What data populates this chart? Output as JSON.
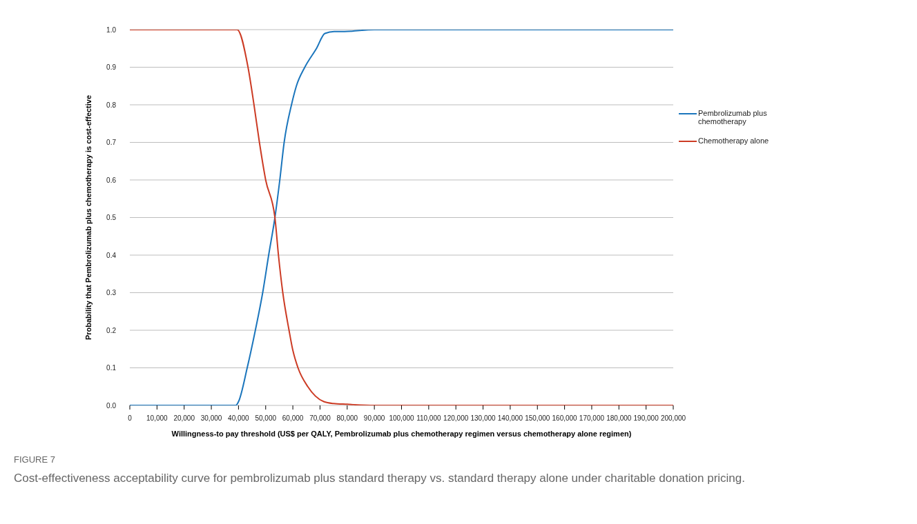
{
  "chart_data": {
    "type": "line",
    "xlabel": "Willingness-to pay threshold (US$ per QALY, Pembrolizumab plus chemotherapy regimen versus chemotherapy alone regimen)",
    "ylabel": "Probability that Pembrolizumab plus chemotherapy is cost-effective",
    "annotations": [
      "FIGURE 7",
      "Cost-effectiveness acceptability curve for pembrolizumab plus standard therapy vs. standard therapy alone under charitable donation pricing."
    ],
    "series": [
      {
        "name": "Pembrolizumab plus chemotherapy",
        "color": "#1a75bc",
        "x": [
          0,
          10000,
          20000,
          30000,
          39000,
          40000,
          43200,
          46200,
          48900,
          51100,
          53400,
          55200,
          56800,
          59500,
          61300,
          64400,
          68700,
          71800,
          75200,
          79000,
          90000,
          100000,
          150000,
          200000
        ],
        "values": [
          0,
          0,
          0,
          0,
          0,
          0.01,
          0.1,
          0.2,
          0.3,
          0.4,
          0.5,
          0.6,
          0.7,
          0.8,
          0.85,
          0.9,
          0.95,
          0.99,
          0.995,
          0.995,
          1,
          1,
          1,
          1
        ]
      },
      {
        "name": "Chemotherapy alone",
        "color": "#cc3b24",
        "x": [
          0,
          10000,
          20000,
          30000,
          39500,
          43500,
          45700,
          47700,
          50000,
          53400,
          54700,
          56300,
          58600,
          59900,
          61900,
          65500,
          71400,
          75000,
          80000,
          90000,
          100000,
          150000,
          200000
        ],
        "values": [
          1,
          1,
          1,
          1,
          1,
          0.9,
          0.8,
          0.7,
          0.6,
          0.5,
          0.4,
          0.3,
          0.2,
          0.15,
          0.1,
          0.05,
          0.01,
          0.005,
          0.003,
          0,
          0,
          0,
          0
        ]
      }
    ],
    "xlim": [
      0,
      200000
    ],
    "xticks": [
      0,
      {
        "value": 10000,
        "label": "10,000"
      },
      {
        "value": 20000,
        "label": "20,000"
      },
      {
        "value": 30000,
        "label": "30,000"
      },
      {
        "value": 40000,
        "label": "40,000"
      },
      {
        "value": 50000,
        "label": "50,000"
      },
      {
        "value": 60000,
        "label": "60,000"
      },
      {
        "value": 70000,
        "label": "70,000"
      },
      {
        "value": 80000,
        "label": "80,000"
      },
      {
        "value": 90000,
        "label": "90,000"
      },
      {
        "value": 100000,
        "label": "100,000"
      },
      {
        "value": 110000,
        "label": "110,000"
      },
      {
        "value": 120000,
        "label": "120,000"
      },
      {
        "value": 130000,
        "label": "130,000"
      },
      {
        "value": 140000,
        "label": "140,000"
      },
      {
        "value": 150000,
        "label": "150,000"
      },
      {
        "value": 160000,
        "label": "160,000"
      },
      {
        "value": 170000,
        "label": "170,000"
      },
      {
        "value": 180000,
        "label": "180,000"
      },
      {
        "value": 190000,
        "label": "190,000"
      },
      {
        "value": 200000,
        "label": "200,000"
      }
    ],
    "ylim": [
      0,
      1
    ],
    "yticks": [
      {
        "value": 0,
        "label": "0.0"
      },
      {
        "value": 0.1,
        "label": "0.1"
      },
      {
        "value": 0.2,
        "label": "0.2"
      },
      {
        "value": 0.3,
        "label": "0.3"
      },
      {
        "value": 0.4,
        "label": "0.4"
      },
      {
        "value": 0.5,
        "label": "0.5"
      },
      {
        "value": 0.6,
        "label": "0.6"
      },
      {
        "value": 0.7,
        "label": "0.7"
      },
      {
        "value": 0.8,
        "label": "0.8"
      },
      {
        "value": 0.9,
        "label": "0.9"
      },
      {
        "value": 1,
        "label": "1.0"
      }
    ],
    "grid": "y",
    "legend": "right",
    "marker": "none",
    "line_style": "solid"
  }
}
